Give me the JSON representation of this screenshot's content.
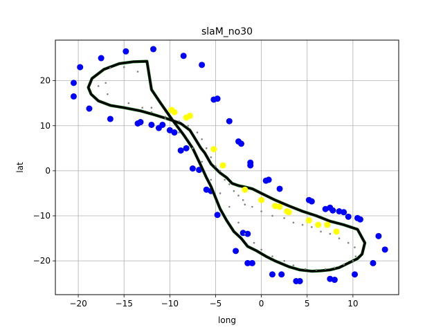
{
  "chart_data": {
    "type": "scatter",
    "title": "slaM_no30",
    "xlabel": "long",
    "ylabel": "lat",
    "xlim": [
      -22.5,
      15
    ],
    "ylim": [
      -27.5,
      29
    ],
    "xticks": [
      -20,
      -15,
      -10,
      -5,
      0,
      5,
      10
    ],
    "yticks": [
      -20,
      -10,
      0,
      10,
      20
    ],
    "xtick_labels": [
      "−20",
      "−15",
      "−10",
      "−5",
      "0",
      "5",
      "10"
    ],
    "ytick_labels": [
      "−20",
      "−10",
      "0",
      "10",
      "20"
    ],
    "grid": true,
    "colors": {
      "blue": "#0000ff",
      "yellow": "#ffff00",
      "track": "#000000",
      "gray": "#808080",
      "green": "#006400"
    },
    "series": [
      {
        "style": "blue-markers",
        "x": [
          -20.5,
          -20.5,
          -19.8,
          -17.5,
          -18.8,
          -16.5,
          -14.8,
          -13.5,
          -13.2,
          -11.8,
          -12.0,
          -10.8,
          -11.2,
          -10.0,
          -9.5,
          -8.5,
          -8.2,
          -8.8,
          -6.5,
          -7.5,
          -6.8,
          -5.5,
          -6.0,
          -4.8,
          -5.2,
          -3.5,
          -2.5,
          -2.2,
          -1.2,
          -1.2,
          -1.5,
          -2.0,
          -2.8,
          -4.8,
          -1.5,
          -1.0,
          0.5,
          0.8,
          2.0,
          1.2,
          2.2,
          3.8,
          4.2,
          5.2,
          5.5,
          7.0,
          7.5,
          7.5,
          8.0,
          8.5,
          9.0,
          9.5,
          10.5,
          10.8,
          12.8,
          13.5,
          12.2,
          10.2,
          7.8
        ],
        "y": [
          19.5,
          16.5,
          23.0,
          25.0,
          13.8,
          11.5,
          26.5,
          10.5,
          10.8,
          27.0,
          10.2,
          10.2,
          9.5,
          9.0,
          8.5,
          25.5,
          5.0,
          4.5,
          23.5,
          0.5,
          0.2,
          -4.5,
          -4.2,
          16.0,
          15.8,
          11.0,
          6.5,
          6.0,
          1.8,
          1.2,
          -14.0,
          -13.8,
          -17.8,
          -9.8,
          -20.5,
          -20.5,
          -2.2,
          -2.0,
          -4.0,
          -23.0,
          -23.0,
          -24.5,
          -24.5,
          -6.5,
          -6.8,
          -8.5,
          -8.2,
          -24.0,
          -24.2,
          -9.0,
          -9.2,
          -10.2,
          -10.5,
          -10.8,
          -14.5,
          -17.5,
          -20.5,
          -23.0,
          -8.8
        ]
      },
      {
        "style": "yellow-markers",
        "x": [
          -9.8,
          -9.5,
          -8.2,
          -7.8,
          -5.2,
          -4.2,
          -1.8,
          0.0,
          1.5,
          2.0,
          2.8,
          3.0,
          5.2,
          6.2,
          7.2,
          8.2
        ],
        "y": [
          13.5,
          13.0,
          11.8,
          12.2,
          4.8,
          1.2,
          -4.2,
          -6.5,
          -7.8,
          -8.0,
          -9.0,
          -9.2,
          -11.0,
          -12.0,
          -12.0,
          -13.5
        ]
      },
      {
        "style": "track-line",
        "x": [
          -12.5,
          -14.0,
          -15.5,
          -17.2,
          -18.5,
          -18.9,
          -18.6,
          -17.8,
          -16.5,
          -15.0,
          -13.2,
          -11.8,
          -10.2,
          -8.8,
          -7.8,
          -6.6,
          -6.2,
          -5.5,
          -4.5,
          -3.8,
          -3.2,
          -2.5,
          -1.8,
          -1.0,
          0.0,
          1.5,
          3.0,
          4.5,
          6.0,
          7.5,
          9.0,
          10.5,
          11.3,
          11.0,
          10.5,
          9.5,
          8.5,
          7.5,
          6.5,
          5.5,
          4.2,
          3.0,
          1.5,
          0.5,
          -0.5,
          -1.5,
          -2.2,
          -3.0,
          -3.8,
          -4.5,
          -5.0,
          -5.5,
          -6.0,
          -6.8,
          -7.5,
          -8.5,
          -9.8,
          -11.0,
          -12.0,
          -12.5
        ],
        "y": [
          24.3,
          24.2,
          23.8,
          22.5,
          20.5,
          18.5,
          17.0,
          15.5,
          14.5,
          14.0,
          13.3,
          12.5,
          11.5,
          10.5,
          9.0,
          5.0,
          4.0,
          1.5,
          -0.5,
          -1.5,
          -2.8,
          -3.3,
          -3.6,
          -4.0,
          -5.0,
          -6.5,
          -7.8,
          -9.0,
          -10.0,
          -11.2,
          -12.0,
          -13.0,
          -16.0,
          -18.5,
          -19.5,
          -20.5,
          -21.5,
          -22.0,
          -22.2,
          -22.3,
          -22.0,
          -21.3,
          -20.0,
          -19.0,
          -17.8,
          -16.8,
          -15.0,
          -13.5,
          -11.0,
          -8.5,
          -6.0,
          -3.5,
          -1.5,
          2.0,
          5.0,
          8.0,
          11.5,
          15.0,
          18.0,
          24.3
        ]
      },
      {
        "style": "gray-dots",
        "x": [
          -17.0,
          -17.8,
          -16.8,
          -14.5,
          -13.0,
          -12.0,
          -10.5,
          -9.0,
          -8.0,
          -7.0,
          -6.5,
          -6.0,
          -5.5,
          -5.0,
          -4.5,
          -4.0,
          -3.5,
          -3.0,
          -2.5,
          -2.0,
          -1.8,
          -1.0,
          0.0,
          1.2,
          2.5,
          3.5,
          4.5,
          5.5,
          6.5,
          7.5,
          8.5,
          9.5,
          10.2,
          10.3,
          10.0,
          9.0,
          8.0,
          7.0,
          6.0,
          4.8,
          3.5,
          2.5,
          1.2,
          0.0,
          -0.8,
          -1.8,
          -2.5,
          -3.5,
          -4.5,
          -5.5,
          -6.5,
          -7.5,
          -9.0,
          -10.5,
          -12.0,
          -13.5,
          -15.0,
          -16.5
        ],
        "y": [
          19.5,
          18.8,
          17.0,
          15.0,
          14.0,
          13.0,
          12.0,
          11.0,
          10.0,
          8.5,
          7.0,
          5.0,
          3.0,
          1.0,
          0.0,
          -2.0,
          -3.0,
          -4.5,
          -5.5,
          -6.5,
          -7.5,
          -8.0,
          -9.0,
          -10.0,
          -10.5,
          -11.5,
          -12.0,
          -12.5,
          -13.5,
          -14.0,
          -15.0,
          -16.0,
          -17.0,
          -19.0,
          -20.0,
          -20.8,
          -21.5,
          -21.8,
          -22.0,
          -21.8,
          -21.0,
          -20.0,
          -19.0,
          -17.5,
          -16.0,
          -14.0,
          -11.5,
          -8.0,
          -5.0,
          -2.0,
          2.0,
          5.0,
          8.5,
          11.5,
          14.0,
          22.0,
          23.0,
          22.8
        ]
      }
    ]
  }
}
